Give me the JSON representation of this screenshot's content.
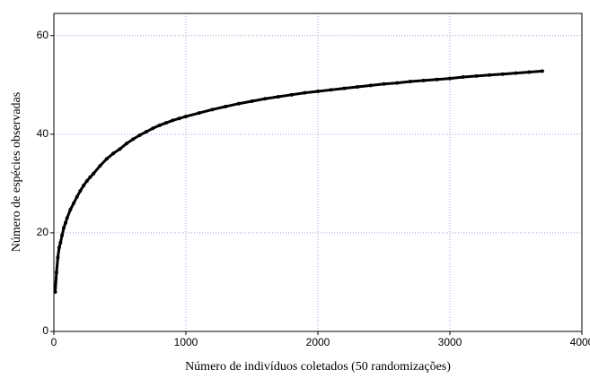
{
  "chart_data": {
    "type": "scatter",
    "x_label": "Número de indivíduos coletados (50 randomizações)",
    "y_label": "Número de espécies observadas",
    "xlim": [
      0,
      4000
    ],
    "ylim": [
      0,
      64.5
    ],
    "xticks": [
      0,
      1000,
      2000,
      3000,
      4000
    ],
    "yticks": [
      0,
      20,
      40,
      60
    ],
    "grid": true,
    "series": [
      {
        "color": "#000000",
        "x": [
          10,
          20,
          30,
          40,
          50,
          62,
          75,
          88,
          100,
          125,
          150,
          175,
          200,
          225,
          250,
          275,
          300,
          350,
          400,
          450,
          500,
          550,
          600,
          650,
          700,
          750,
          800,
          850,
          900,
          950,
          1000,
          1100,
          1200,
          1300,
          1400,
          1500,
          1600,
          1700,
          1800,
          1900,
          2000,
          2100,
          2200,
          2300,
          2400,
          2500,
          2600,
          2700,
          2800,
          2900,
          3000,
          3100,
          3200,
          3300,
          3400,
          3500,
          3600,
          3700
        ],
        "y": [
          8,
          12,
          15,
          17,
          18,
          19.5,
          21,
          22,
          23,
          24.7,
          26,
          27.3,
          28.5,
          29.6,
          30.5,
          31.3,
          32,
          33.6,
          35,
          36.1,
          37,
          38.1,
          39,
          39.8,
          40.5,
          41.2,
          41.8,
          42.3,
          42.8,
          43.2,
          43.6,
          44.3,
          45,
          45.6,
          46.2,
          46.7,
          47.2,
          47.6,
          48,
          48.4,
          48.7,
          49,
          49.3,
          49.6,
          49.9,
          50.2,
          50.4,
          50.7,
          50.9,
          51.1,
          51.3,
          51.6,
          51.8,
          52,
          52.2,
          52.4,
          52.6,
          52.8
        ]
      }
    ]
  }
}
